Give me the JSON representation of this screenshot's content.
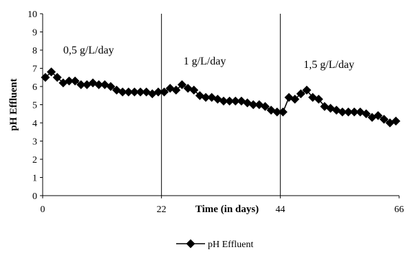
{
  "chart_data": {
    "type": "line",
    "title": "",
    "xlabel": "Time (in days)",
    "ylabel": "pH Effluent",
    "xlim": [
      0,
      66
    ],
    "ylim": [
      0,
      10
    ],
    "x_ticks": [
      0,
      22,
      44,
      66
    ],
    "y_ticks": [
      0,
      1,
      2,
      3,
      4,
      5,
      6,
      7,
      8,
      9,
      10
    ],
    "vertical_lines": [
      22,
      44
    ],
    "grid": false,
    "legend_position": "bottom-center",
    "annotations": [
      {
        "text": "0,5 g/L/day",
        "x": 8.5,
        "y": 8
      },
      {
        "text": "1 g/L/day",
        "x": 30,
        "y": 7.4
      },
      {
        "text": "1,5 g/L/day",
        "x": 53,
        "y": 7.2
      }
    ],
    "series": [
      {
        "name": "pH Effluent",
        "color": "#000000",
        "marker": "diamond",
        "x": [
          0.5,
          1.6,
          2.7,
          3.8,
          4.9,
          6.0,
          7.1,
          8.2,
          9.3,
          10.4,
          11.5,
          12.6,
          13.7,
          14.8,
          15.9,
          17.0,
          18.1,
          19.2,
          20.3,
          21.4,
          22.5,
          23.6,
          24.7,
          25.8,
          26.9,
          28.0,
          29.1,
          30.2,
          31.3,
          32.4,
          33.5,
          34.6,
          35.7,
          36.8,
          37.9,
          39.0,
          40.1,
          41.2,
          42.3,
          43.4,
          44.5,
          45.6,
          46.7,
          47.8,
          48.9,
          50.0,
          51.1,
          52.2,
          53.3,
          54.4,
          55.5,
          56.6,
          57.7,
          58.8,
          59.9,
          61.0,
          62.1,
          63.2,
          64.3,
          65.4
        ],
        "y": [
          6.5,
          6.8,
          6.5,
          6.2,
          6.3,
          6.3,
          6.1,
          6.1,
          6.2,
          6.1,
          6.1,
          6.0,
          5.8,
          5.7,
          5.7,
          5.7,
          5.7,
          5.7,
          5.6,
          5.7,
          5.7,
          5.9,
          5.8,
          6.1,
          5.9,
          5.8,
          5.5,
          5.4,
          5.4,
          5.3,
          5.2,
          5.2,
          5.2,
          5.2,
          5.1,
          5.0,
          5.0,
          4.9,
          4.7,
          4.6,
          4.6,
          5.4,
          5.3,
          5.6,
          5.8,
          5.4,
          5.3,
          4.9,
          4.8,
          4.7,
          4.6,
          4.6,
          4.6,
          4.6,
          4.5,
          4.3,
          4.4,
          4.2,
          4.0,
          4.1
        ]
      }
    ]
  }
}
